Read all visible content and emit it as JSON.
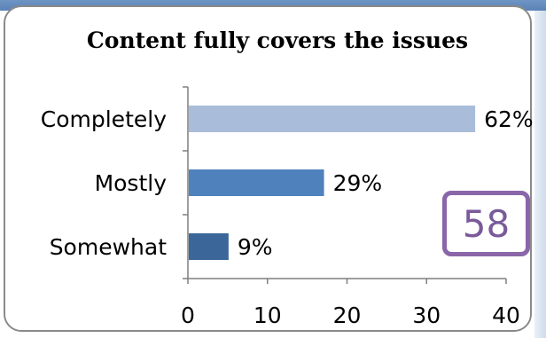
{
  "chart_data": {
    "type": "bar",
    "orientation": "horizontal",
    "title": "Content fully covers the issues",
    "categories": [
      "Completely",
      "Mostly",
      "Somewhat"
    ],
    "values": [
      62,
      29,
      9
    ],
    "value_labels": [
      "62%",
      "29%",
      "9%"
    ],
    "bar_lengths": [
      36,
      17,
      5
    ],
    "xlim": [
      0,
      40
    ],
    "x_ticks": [
      "0",
      "10",
      "20",
      "30",
      "40"
    ],
    "grid": false,
    "legend": "none",
    "colors": [
      "#a9bcda",
      "#4f81bd",
      "#3b6699"
    ]
  },
  "badge": {
    "number": "58",
    "color": "#8a66a9"
  }
}
